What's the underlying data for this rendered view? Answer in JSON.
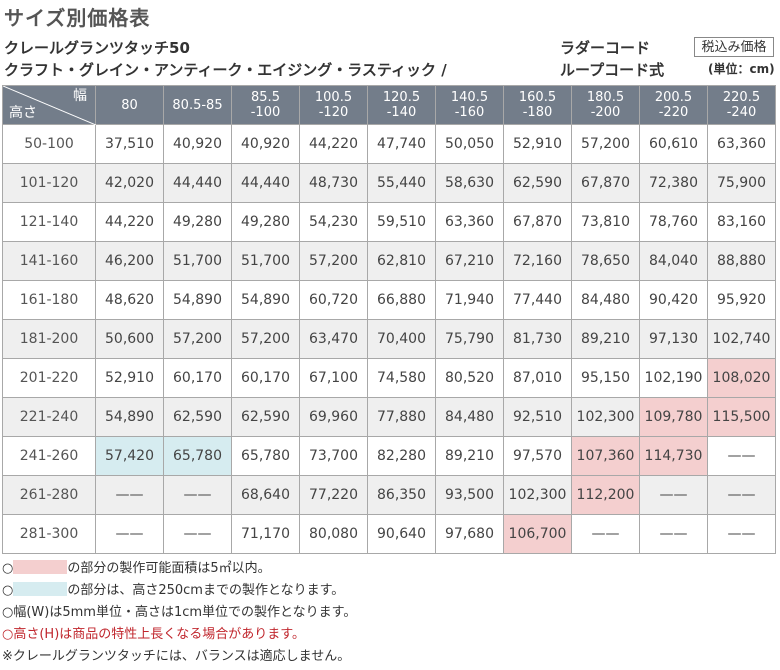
{
  "title": "サイズ別価格表",
  "product_line1": "クレールグランツタッチ50",
  "product_line2": "クラフト・グレイン・アンティーク・エイジング・ラスティック /",
  "cord_line1": "ラダーコード",
  "cord_line2": "ループコード式",
  "tax_label": "税込み価格",
  "unit_label": "(単位：cm)",
  "table": {
    "corner_width": "幅",
    "corner_height": "高さ",
    "columns": [
      "80",
      "80.5-85",
      "85.5\n-100",
      "100.5\n-120",
      "120.5\n-140",
      "140.5\n-160",
      "160.5\n-180",
      "180.5\n-200",
      "200.5\n-220",
      "220.5\n-240"
    ],
    "rows": [
      {
        "label": "50-100",
        "cells": [
          "37,510",
          "40,920",
          "40,920",
          "44,220",
          "47,740",
          "50,050",
          "52,910",
          "57,200",
          "60,610",
          "63,360"
        ]
      },
      {
        "label": "101-120",
        "cells": [
          "42,020",
          "44,440",
          "44,440",
          "48,730",
          "55,440",
          "58,630",
          "62,590",
          "67,870",
          "72,380",
          "75,900"
        ]
      },
      {
        "label": "121-140",
        "cells": [
          "44,220",
          "49,280",
          "49,280",
          "54,230",
          "59,510",
          "63,360",
          "67,870",
          "73,810",
          "78,760",
          "83,160"
        ]
      },
      {
        "label": "141-160",
        "cells": [
          "46,200",
          "51,700",
          "51,700",
          "57,200",
          "62,810",
          "67,210",
          "72,160",
          "78,650",
          "84,040",
          "88,880"
        ]
      },
      {
        "label": "161-180",
        "cells": [
          "48,620",
          "54,890",
          "54,890",
          "60,720",
          "66,880",
          "71,940",
          "77,440",
          "84,480",
          "90,420",
          "95,920"
        ]
      },
      {
        "label": "181-200",
        "cells": [
          "50,600",
          "57,200",
          "57,200",
          "63,470",
          "70,400",
          "75,790",
          "81,730",
          "89,210",
          "97,130",
          "102,740"
        ]
      },
      {
        "label": "201-220",
        "cells": [
          "52,910",
          "60,170",
          "60,170",
          "67,100",
          "74,580",
          "80,520",
          "87,010",
          "95,150",
          "102,190",
          "108,020"
        ]
      },
      {
        "label": "221-240",
        "cells": [
          "54,890",
          "62,590",
          "62,590",
          "69,960",
          "77,880",
          "84,480",
          "92,510",
          "102,300",
          "109,780",
          "115,500"
        ]
      },
      {
        "label": "241-260",
        "cells": [
          "57,420",
          "65,780",
          "65,780",
          "73,700",
          "82,280",
          "89,210",
          "97,570",
          "107,360",
          "114,730",
          "——"
        ]
      },
      {
        "label": "261-280",
        "cells": [
          "——",
          "——",
          "68,640",
          "77,220",
          "86,350",
          "93,500",
          "102,300",
          "112,200",
          "——",
          "——"
        ]
      },
      {
        "label": "281-300",
        "cells": [
          "——",
          "——",
          "71,170",
          "80,080",
          "90,640",
          "97,680",
          "106,700",
          "——",
          "——",
          "——"
        ]
      }
    ],
    "highlight": {
      "pink": [
        [
          6,
          9
        ],
        [
          7,
          8
        ],
        [
          7,
          9
        ],
        [
          8,
          7
        ],
        [
          8,
          8
        ],
        [
          9,
          7
        ],
        [
          10,
          6
        ]
      ],
      "blue": [
        [
          8,
          0
        ],
        [
          8,
          1
        ]
      ],
      "red_text": [
        [
          0,
          0
        ]
      ]
    }
  },
  "notes": {
    "pink_note": "の部分の製作可能面積は5㎡以内。",
    "blue_note": "の部分は、高さ250cmまでの製作となります。",
    "unit_note": "○幅(W)は5mm単位・高さは1cm単位での製作となります。",
    "height_note": "○高さ(H)は商品の特性上長くなる場合があります。",
    "balance_note": "※クレールグランツタッチには、バランスは適応しません。",
    "circle": "○"
  },
  "colors": {
    "header_bg": "#737d8a",
    "pink": "#f4cfcf",
    "blue": "#d6ecf0",
    "accent_red": "#c0262d"
  }
}
